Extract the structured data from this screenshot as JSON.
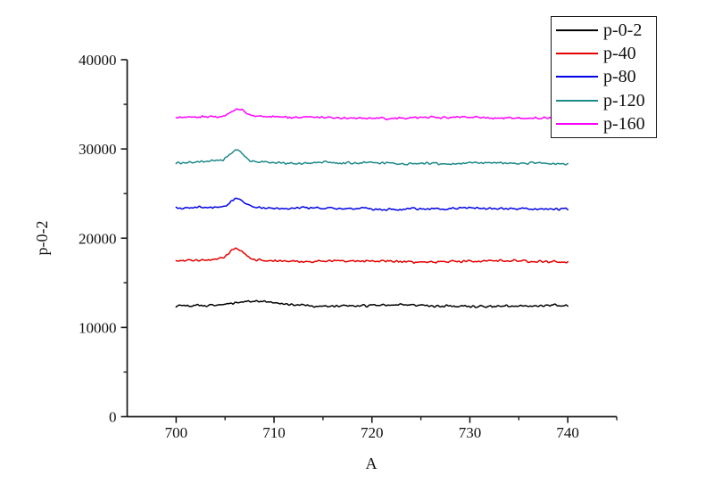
{
  "page": {
    "background": "#ffffff",
    "text_color": "#111111",
    "axis_color": "#1a1a1a"
  },
  "chart_data": {
    "type": "line",
    "xlabel": "A",
    "ylabel": "p-0-2",
    "xlim": [
      695,
      745
    ],
    "ylim": [
      0,
      40000
    ],
    "x_ticks": [
      700,
      710,
      720,
      730,
      740
    ],
    "x_minor_ticks": [
      705,
      715,
      725,
      735,
      745
    ],
    "y_ticks": [
      0,
      10000,
      20000,
      30000,
      40000
    ],
    "y_minor_ticks": [
      5000,
      15000,
      25000,
      35000
    ],
    "grid": false,
    "legend_position": "top-right",
    "x_data_range": [
      700,
      740
    ],
    "x_step": 0.1,
    "series": [
      {
        "name": "p-0-2",
        "color": "#000000",
        "baseline": 12400,
        "peak_x": 708.0,
        "peak_height": 430,
        "peak_width": 2.6,
        "noise": 230
      },
      {
        "name": "p-40",
        "color": "#e60000",
        "baseline": 17400,
        "peak_x": 706.2,
        "peak_height": 1150,
        "peak_width": 1.0,
        "noise": 230
      },
      {
        "name": "p-80",
        "color": "#0000e6",
        "baseline": 23300,
        "peak_x": 706.2,
        "peak_height": 950,
        "peak_width": 1.0,
        "noise": 230
      },
      {
        "name": "p-120",
        "color": "#1f8a8a",
        "baseline": 28400,
        "peak_x": 706.2,
        "peak_height": 1250,
        "peak_width": 0.9,
        "noise": 230
      },
      {
        "name": "p-160",
        "color": "#ff00ff",
        "baseline": 33500,
        "peak_x": 706.3,
        "peak_height": 900,
        "peak_width": 1.0,
        "noise": 230
      }
    ]
  },
  "legend": {
    "items": [
      {
        "label": "p-0-2",
        "color": "#000000"
      },
      {
        "label": "p-40",
        "color": "#e60000"
      },
      {
        "label": "p-80",
        "color": "#0000e6"
      },
      {
        "label": "p-120",
        "color": "#1f8a8a"
      },
      {
        "label": "p-160",
        "color": "#ff00ff"
      }
    ]
  }
}
